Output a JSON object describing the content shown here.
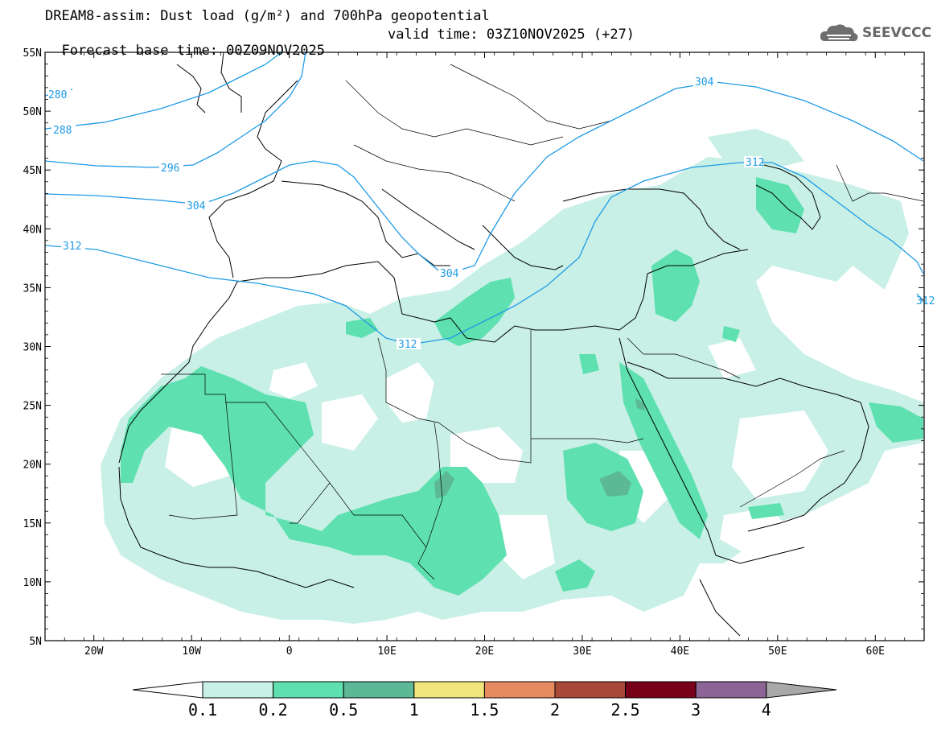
{
  "header": {
    "line1": "DREAM8-assim: Dust load (g/m²) and 700hPa geopotential",
    "base_time": "Forecast base time: 00Z09NOV2025",
    "valid_time": "valid time: 03Z10NOV2025 (+27)"
  },
  "logo": {
    "text": "SEEVCCC",
    "icon": "cloud-icon"
  },
  "map": {
    "lon_range": [
      -25,
      65
    ],
    "lat_range": [
      5,
      55
    ],
    "lat_ticks": [
      "55N",
      "50N",
      "45N",
      "40N",
      "35N",
      "30N",
      "25N",
      "20N",
      "15N",
      "10N",
      "5N"
    ],
    "lon_ticks": [
      "20W",
      "10W",
      "0",
      "10E",
      "20E",
      "30E",
      "40E",
      "50E",
      "60E"
    ],
    "geopotential_labels": [
      "280",
      "288",
      "296",
      "304",
      "304",
      "312",
      "304",
      "312",
      "312",
      "312"
    ]
  },
  "colorbar": {
    "levels": [
      "0.1",
      "0.2",
      "0.5",
      "1",
      "1.5",
      "2",
      "2.5",
      "3",
      "4"
    ],
    "colors": [
      "#c8f0e6",
      "#5ee0b0",
      "#5cb896",
      "#f0e47c",
      "#e68a60",
      "#a84838",
      "#780018",
      "#8c6496"
    ],
    "over_color": "#a8a8a8",
    "under_color": "#ffffff"
  }
}
